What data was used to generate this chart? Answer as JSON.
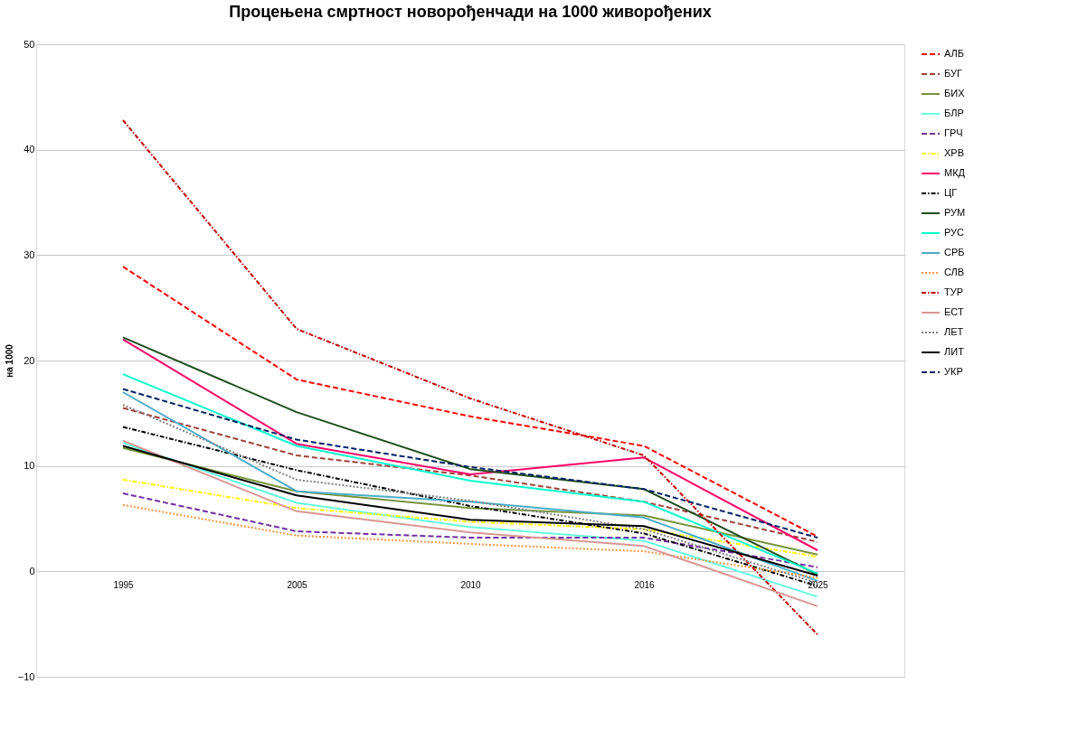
{
  "chart_data": {
    "type": "line",
    "title": "Процењена смртност новорођенчади на 1000 живорођених",
    "ylabel": "на 1000",
    "categories": [
      "1995",
      "2005",
      "2010",
      "2016",
      "2025"
    ],
    "ylim": [
      -10,
      50
    ],
    "yticks": [
      -10,
      0,
      10,
      20,
      30,
      40,
      50
    ],
    "grid": "y",
    "legend": "right",
    "marker": "none",
    "series": [
      {
        "name": "АЛБ",
        "color": "#ff0000",
        "line_style": "dashed",
        "values": [
          28.9,
          18.2,
          14.7,
          11.9,
          3.3
        ]
      },
      {
        "name": "БУГ",
        "color": "#a0413c",
        "line_style": "dashed",
        "values": [
          15.5,
          11.0,
          9.1,
          6.6,
          2.8
        ]
      },
      {
        "name": "БИХ",
        "color": "#77933c",
        "line_style": "solid",
        "values": [
          11.7,
          7.6,
          6.0,
          5.3,
          1.6
        ]
      },
      {
        "name": "БЛР",
        "color": "#66ffe0",
        "line_style": "solid",
        "values": [
          12.2,
          6.5,
          4.2,
          2.9,
          -2.4
        ]
      },
      {
        "name": "ГРЧ",
        "color": "#7030a0",
        "line_style": "dashed",
        "values": [
          7.4,
          3.8,
          3.2,
          3.2,
          0.4
        ]
      },
      {
        "name": "ХРВ",
        "color": "#ffff00",
        "line_style": "dashdot",
        "values": [
          8.7,
          6.0,
          4.7,
          4.0,
          1.4
        ]
      },
      {
        "name": "МКД",
        "color": "#ff0066",
        "line_style": "solid",
        "values": [
          22.0,
          12.1,
          9.2,
          10.8,
          2.0
        ]
      },
      {
        "name": "ЦГ",
        "color": "#000000",
        "line_style": "dashdot",
        "values": [
          13.7,
          9.6,
          6.2,
          3.6,
          -1.4
        ]
      },
      {
        "name": "РУМ",
        "color": "#1e4d1e",
        "line_style": "solid",
        "values": [
          22.2,
          15.1,
          9.7,
          7.8,
          -0.3
        ]
      },
      {
        "name": "РУС",
        "color": "#00ffcc",
        "line_style": "solid",
        "values": [
          18.7,
          11.9,
          8.6,
          6.6,
          -0.2
        ]
      },
      {
        "name": "СРБ",
        "color": "#4bacc6",
        "line_style": "solid",
        "values": [
          17.0,
          7.6,
          6.6,
          5.1,
          -0.9
        ]
      },
      {
        "name": "СЛВ",
        "color": "#f79646",
        "line_style": "dotted",
        "values": [
          6.3,
          3.4,
          2.6,
          1.9,
          -0.6
        ]
      },
      {
        "name": "ТУР",
        "color": "#c00000",
        "line_style": "dashdot",
        "values": [
          42.8,
          23.0,
          16.4,
          11.0,
          -6.0
        ]
      },
      {
        "name": "ЕСТ",
        "color": "#d99694",
        "line_style": "solid",
        "values": [
          12.4,
          5.7,
          3.7,
          2.4,
          -3.3
        ]
      },
      {
        "name": "ЛЕТ",
        "color": "#808080",
        "line_style": "dotted",
        "values": [
          15.8,
          8.7,
          6.7,
          4.0,
          -1.1
        ]
      },
      {
        "name": "ЛИТ",
        "color": "#000000",
        "line_style": "solid",
        "values": [
          11.9,
          7.2,
          4.9,
          4.3,
          -0.4
        ]
      },
      {
        "name": "УКР",
        "color": "#002060",
        "line_style": "dashed",
        "values": [
          17.3,
          12.5,
          9.9,
          7.8,
          3.2
        ]
      }
    ]
  }
}
